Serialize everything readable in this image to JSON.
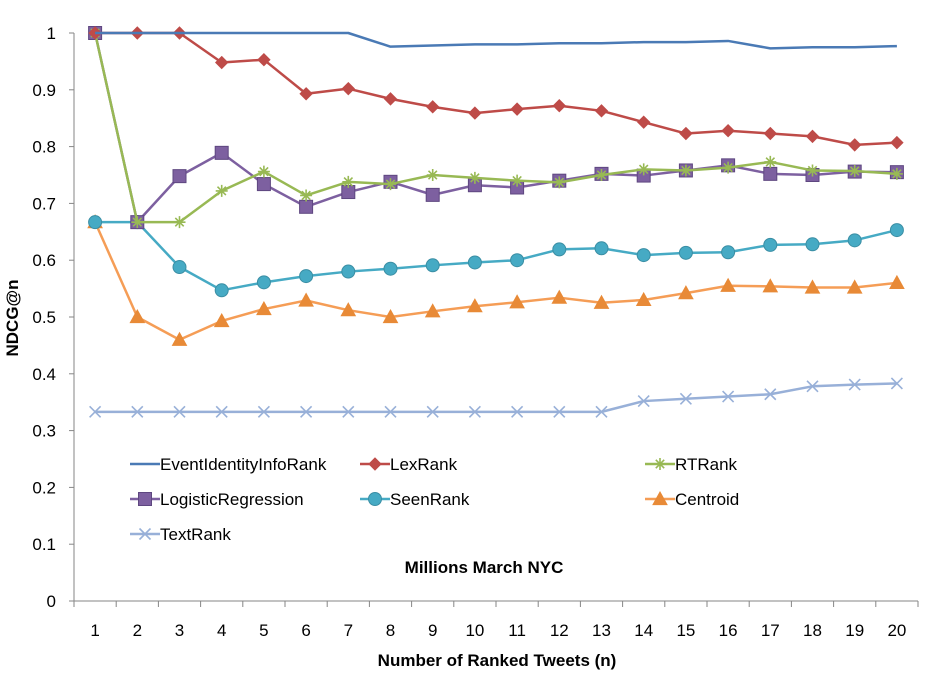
{
  "chart_data": {
    "type": "line",
    "title": "",
    "xlabel": "Number of Ranked Tweets (n)",
    "ylabel": "NDCG@n",
    "annotation": "Millions March NYC",
    "x": [
      1,
      2,
      3,
      4,
      5,
      6,
      7,
      8,
      9,
      10,
      11,
      12,
      13,
      14,
      15,
      16,
      17,
      18,
      19,
      20
    ],
    "ylim": [
      0,
      1
    ],
    "yticks": [
      0,
      0.1,
      0.2,
      0.3,
      0.4,
      0.5,
      0.6,
      0.7,
      0.8,
      0.9,
      1
    ],
    "ytick_labels": [
      "0",
      "0.1",
      "0.2",
      "0.3",
      "0.4",
      "0.5",
      "0.6",
      "0.7",
      "0.8",
      "0.9",
      "1"
    ],
    "xtick_labels": [
      "1",
      "2",
      "3",
      "4",
      "5",
      "6",
      "7",
      "8",
      "9",
      "10",
      "11",
      "12",
      "13",
      "14",
      "15",
      "16",
      "17",
      "18",
      "19",
      "20"
    ],
    "grid": false,
    "legend_position": "bottom-inside",
    "series": [
      {
        "name": "EventIdentityInfoRank",
        "color": "#4a7ab5",
        "marker": "none",
        "values": [
          1,
          1,
          1,
          1,
          1,
          1,
          1,
          0.976,
          0.978,
          0.98,
          0.98,
          0.982,
          0.982,
          0.984,
          0.984,
          0.986,
          0.973,
          0.975,
          0.975,
          0.977
        ]
      },
      {
        "name": "LexRank",
        "color": "#be4b48",
        "marker": "diamond",
        "values": [
          1,
          1,
          1,
          0.948,
          0.953,
          0.893,
          0.902,
          0.884,
          0.87,
          0.859,
          0.866,
          0.872,
          0.863,
          0.843,
          0.823,
          0.828,
          0.823,
          0.818,
          0.803,
          0.807
        ]
      },
      {
        "name": "RTRank",
        "color": "#98b954",
        "marker": "star",
        "values": [
          1,
          0.667,
          0.667,
          0.722,
          0.756,
          0.714,
          0.738,
          0.734,
          0.75,
          0.745,
          0.74,
          0.737,
          0.75,
          0.76,
          0.758,
          0.763,
          0.773,
          0.758,
          0.757,
          0.752
        ]
      },
      {
        "name": "LogisticRegression",
        "color": "#7d60a0",
        "marker": "square",
        "values": [
          1,
          0.667,
          0.748,
          0.789,
          0.734,
          0.694,
          0.72,
          0.738,
          0.715,
          0.732,
          0.728,
          0.74,
          0.752,
          0.749,
          0.758,
          0.767,
          0.752,
          0.75,
          0.756,
          0.755
        ]
      },
      {
        "name": "SeenRank",
        "color": "#46aac4",
        "marker": "circle",
        "values": [
          0.667,
          0.667,
          0.588,
          0.547,
          0.561,
          0.572,
          0.58,
          0.585,
          0.591,
          0.596,
          0.6,
          0.619,
          0.621,
          0.609,
          0.613,
          0.614,
          0.627,
          0.628,
          0.635,
          0.653
        ]
      },
      {
        "name": "Centroid",
        "color": "#f59d56",
        "colorMarker": "#e88a37",
        "marker": "triangle",
        "values": [
          0.667,
          0.5,
          0.46,
          0.493,
          0.514,
          0.529,
          0.512,
          0.5,
          0.51,
          0.519,
          0.526,
          0.534,
          0.525,
          0.53,
          0.542,
          0.555,
          0.554,
          0.552,
          0.552,
          0.56
        ]
      },
      {
        "name": "TextRank",
        "color": "#98b0d8",
        "marker": "x",
        "values": [
          0.333,
          0.333,
          0.333,
          0.333,
          0.333,
          0.333,
          0.333,
          0.333,
          0.333,
          0.333,
          0.333,
          0.333,
          0.333,
          0.352,
          0.356,
          0.36,
          0.364,
          0.378,
          0.381,
          0.383
        ]
      }
    ]
  }
}
